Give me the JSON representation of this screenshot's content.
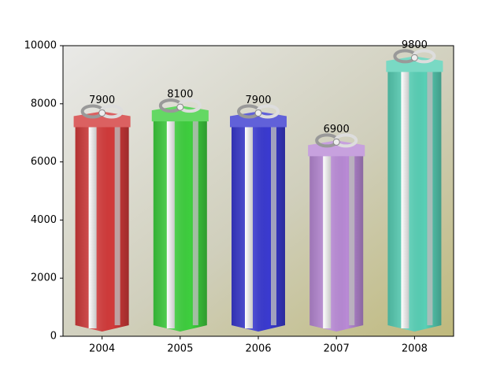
{
  "chart_data": {
    "type": "bar",
    "categories": [
      "2004",
      "2005",
      "2006",
      "2007",
      "2008"
    ],
    "values": [
      7900,
      8100,
      7900,
      6900,
      9800
    ],
    "colors": [
      "#d23a3a",
      "#3ecf3e",
      "#3a3ad0",
      "#b98ad6",
      "#58d0b6"
    ],
    "ylim": [
      0,
      10000
    ],
    "yticks": [
      0,
      2000,
      4000,
      6000,
      8000,
      10000
    ]
  }
}
